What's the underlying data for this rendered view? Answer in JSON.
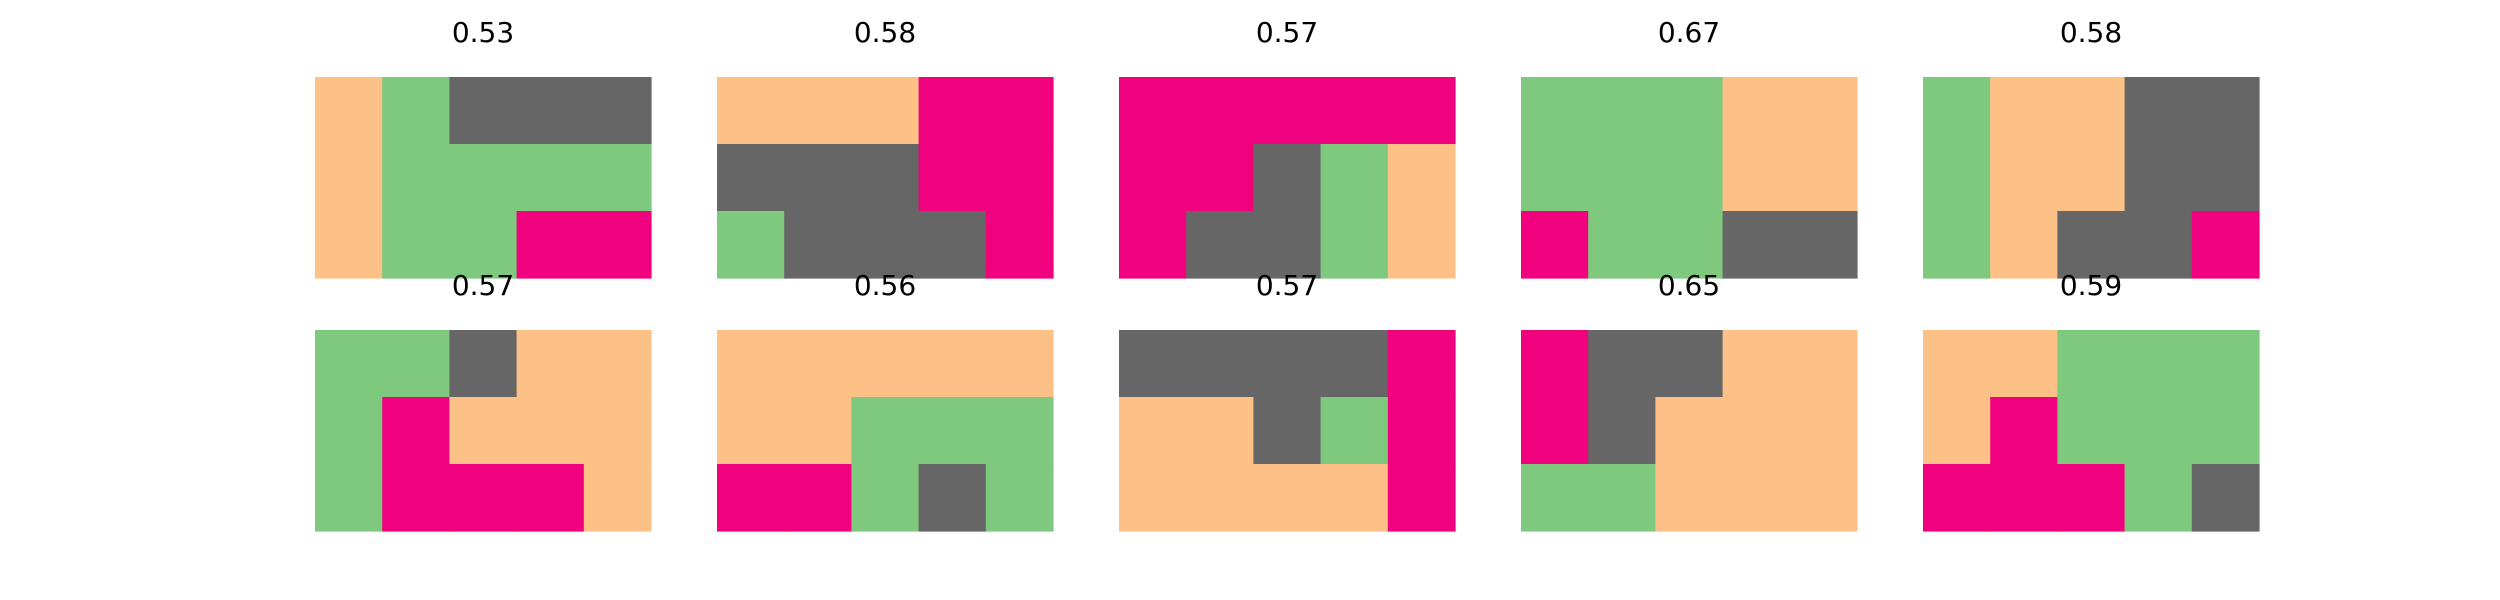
{
  "colors": {
    "peach": "#fdc086",
    "green": "#7fc97f",
    "gray": "#666666",
    "magenta": "#f0027f"
  },
  "chart_data": [
    {
      "type": "heatmap",
      "title": "0.53",
      "grid": [
        [
          "peach",
          "green",
          "gray",
          "gray",
          "gray"
        ],
        [
          "peach",
          "green",
          "green",
          "green",
          "green"
        ],
        [
          "peach",
          "green",
          "green",
          "magenta",
          "magenta"
        ]
      ]
    },
    {
      "type": "heatmap",
      "title": "0.58",
      "grid": [
        [
          "peach",
          "peach",
          "peach",
          "magenta",
          "magenta"
        ],
        [
          "gray",
          "gray",
          "gray",
          "magenta",
          "magenta"
        ],
        [
          "green",
          "gray",
          "gray",
          "gray",
          "magenta"
        ]
      ]
    },
    {
      "type": "heatmap",
      "title": "0.57",
      "grid": [
        [
          "magenta",
          "magenta",
          "magenta",
          "magenta",
          "magenta"
        ],
        [
          "magenta",
          "magenta",
          "gray",
          "green",
          "peach"
        ],
        [
          "magenta",
          "gray",
          "gray",
          "green",
          "peach"
        ]
      ]
    },
    {
      "type": "heatmap",
      "title": "0.67",
      "grid": [
        [
          "green",
          "green",
          "green",
          "peach",
          "peach"
        ],
        [
          "green",
          "green",
          "green",
          "peach",
          "peach"
        ],
        [
          "magenta",
          "green",
          "green",
          "gray",
          "gray"
        ]
      ]
    },
    {
      "type": "heatmap",
      "title": "0.58",
      "grid": [
        [
          "green",
          "peach",
          "peach",
          "gray",
          "gray"
        ],
        [
          "green",
          "peach",
          "peach",
          "gray",
          "gray"
        ],
        [
          "green",
          "peach",
          "gray",
          "gray",
          "magenta"
        ]
      ]
    },
    {
      "type": "heatmap",
      "title": "0.57",
      "grid": [
        [
          "green",
          "green",
          "gray",
          "peach",
          "peach"
        ],
        [
          "green",
          "magenta",
          "peach",
          "peach",
          "peach"
        ],
        [
          "green",
          "magenta",
          "magenta",
          "magenta",
          "peach"
        ]
      ]
    },
    {
      "type": "heatmap",
      "title": "0.56",
      "grid": [
        [
          "peach",
          "peach",
          "peach",
          "peach",
          "peach"
        ],
        [
          "peach",
          "peach",
          "green",
          "green",
          "green"
        ],
        [
          "magenta",
          "magenta",
          "green",
          "gray",
          "green"
        ]
      ]
    },
    {
      "type": "heatmap",
      "title": "0.57",
      "grid": [
        [
          "gray",
          "gray",
          "gray",
          "gray",
          "magenta"
        ],
        [
          "peach",
          "peach",
          "gray",
          "green",
          "magenta"
        ],
        [
          "peach",
          "peach",
          "peach",
          "peach",
          "magenta"
        ]
      ]
    },
    {
      "type": "heatmap",
      "title": "0.65",
      "grid": [
        [
          "magenta",
          "gray",
          "gray",
          "peach",
          "peach"
        ],
        [
          "magenta",
          "gray",
          "peach",
          "peach",
          "peach"
        ],
        [
          "green",
          "green",
          "peach",
          "peach",
          "peach"
        ]
      ]
    },
    {
      "type": "heatmap",
      "title": "0.59",
      "grid": [
        [
          "peach",
          "peach",
          "green",
          "green",
          "green"
        ],
        [
          "peach",
          "magenta",
          "green",
          "green",
          "green"
        ],
        [
          "magenta",
          "magenta",
          "magenta",
          "green",
          "gray"
        ]
      ]
    }
  ]
}
